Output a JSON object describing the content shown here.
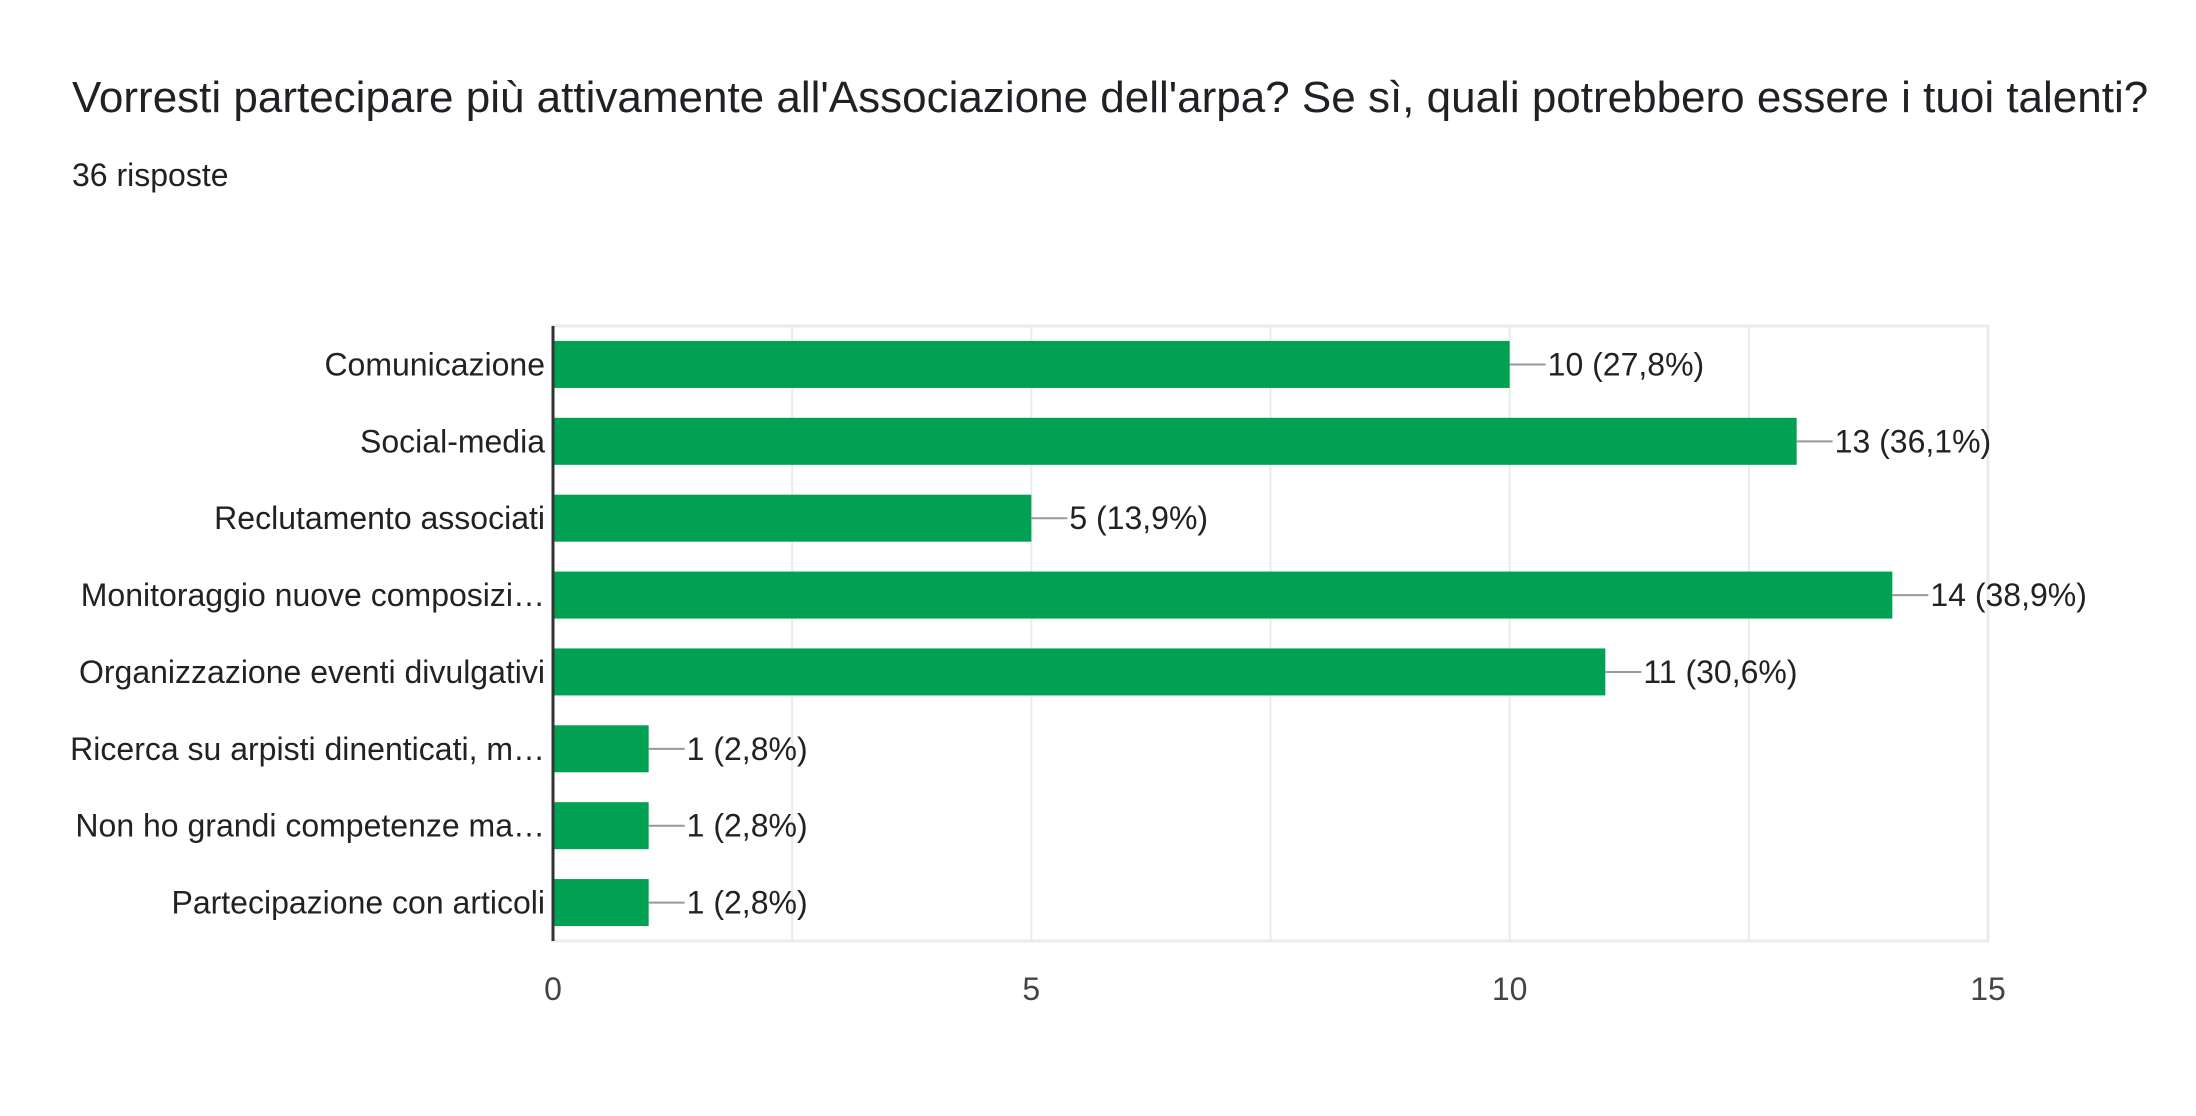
{
  "question": {
    "title": "Vorresti partecipare più attivamente all'Associazione dell'arpa? Se sì, quali potrebbero essere i tuoi talenti?",
    "responses": "36 risposte"
  },
  "chart_data": {
    "type": "bar",
    "orientation": "horizontal",
    "categories": [
      "Comunicazione",
      "Social-media",
      "Reclutamento associati",
      "Monitoraggio nuove composizi…",
      "Organizzazione eventi divulgativi",
      "Ricerca su arpisti dinenticati, m…",
      "Non ho grandi competenze ma…",
      "Partecipazione con articoli"
    ],
    "values": [
      10,
      13,
      5,
      14,
      11,
      1,
      1,
      1
    ],
    "value_labels": [
      "10 (27,8%)",
      "13 (36,1%)",
      "5 (13,9%)",
      "14 (38,9%)",
      "11 (30,6%)",
      "1 (2,8%)",
      "1 (2,8%)",
      "1 (2,8%)"
    ],
    "xlim": [
      0,
      15
    ],
    "x_ticks": [
      0,
      5,
      10,
      15
    ],
    "x_tick_labels": [
      "0",
      "5",
      "10",
      "15"
    ],
    "grid": true,
    "colors": {
      "bar": "#00A152",
      "grid": "#ebebeb",
      "axis": "#333333",
      "leader": "#999999"
    }
  }
}
